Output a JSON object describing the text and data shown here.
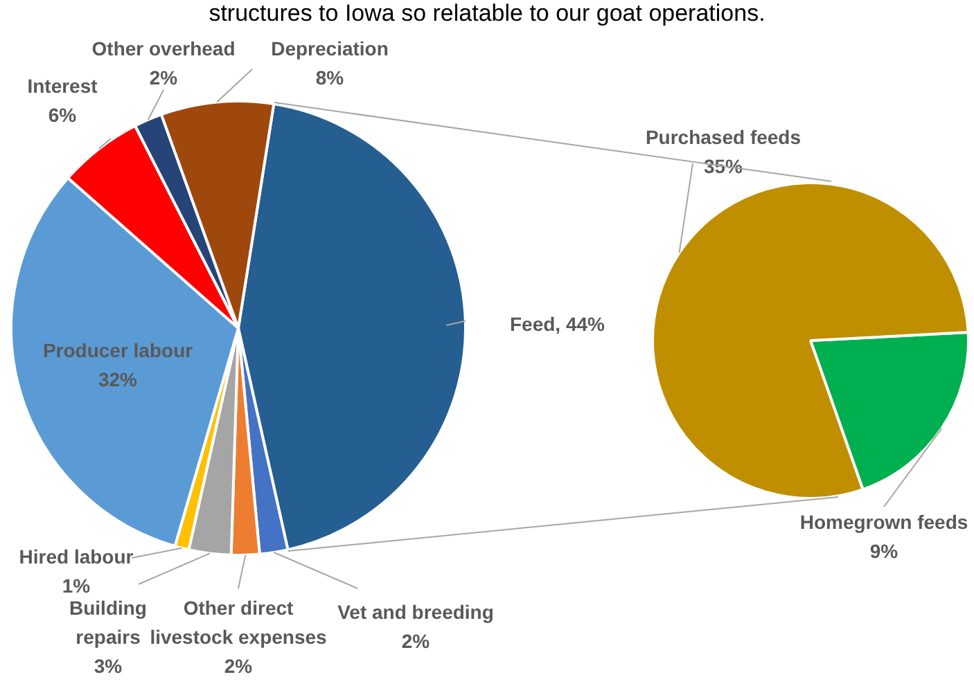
{
  "chart_data": [
    {
      "type": "pie",
      "title": "structures to Iowa so relatable to our goat operations.",
      "categories": [
        "Feed",
        "Vet and breeding",
        "Other direct livestock expenses",
        "Building repairs",
        "Hired labour",
        "Producer labour",
        "Interest",
        "Other overhead",
        "Depreciation"
      ],
      "values": [
        44,
        2,
        2,
        3,
        1,
        32,
        6,
        2,
        8
      ],
      "colors": [
        "#255e91",
        "#4472c4",
        "#ed7d31",
        "#a5a5a5",
        "#ffc000",
        "#5b9bd5",
        "#ff0000",
        "#264478",
        "#9e480e"
      ],
      "value_labels": [
        "44%",
        "2%",
        "2%",
        "3%",
        "1%",
        "32%",
        "6%",
        "2%",
        "8%"
      ]
    },
    {
      "type": "pie",
      "categories": [
        "Homegrown feeds",
        "Purchased feeds"
      ],
      "values": [
        9,
        35
      ],
      "colors": [
        "#00b050",
        "#bf8f00"
      ],
      "value_labels": [
        "9%",
        "35%"
      ]
    }
  ]
}
